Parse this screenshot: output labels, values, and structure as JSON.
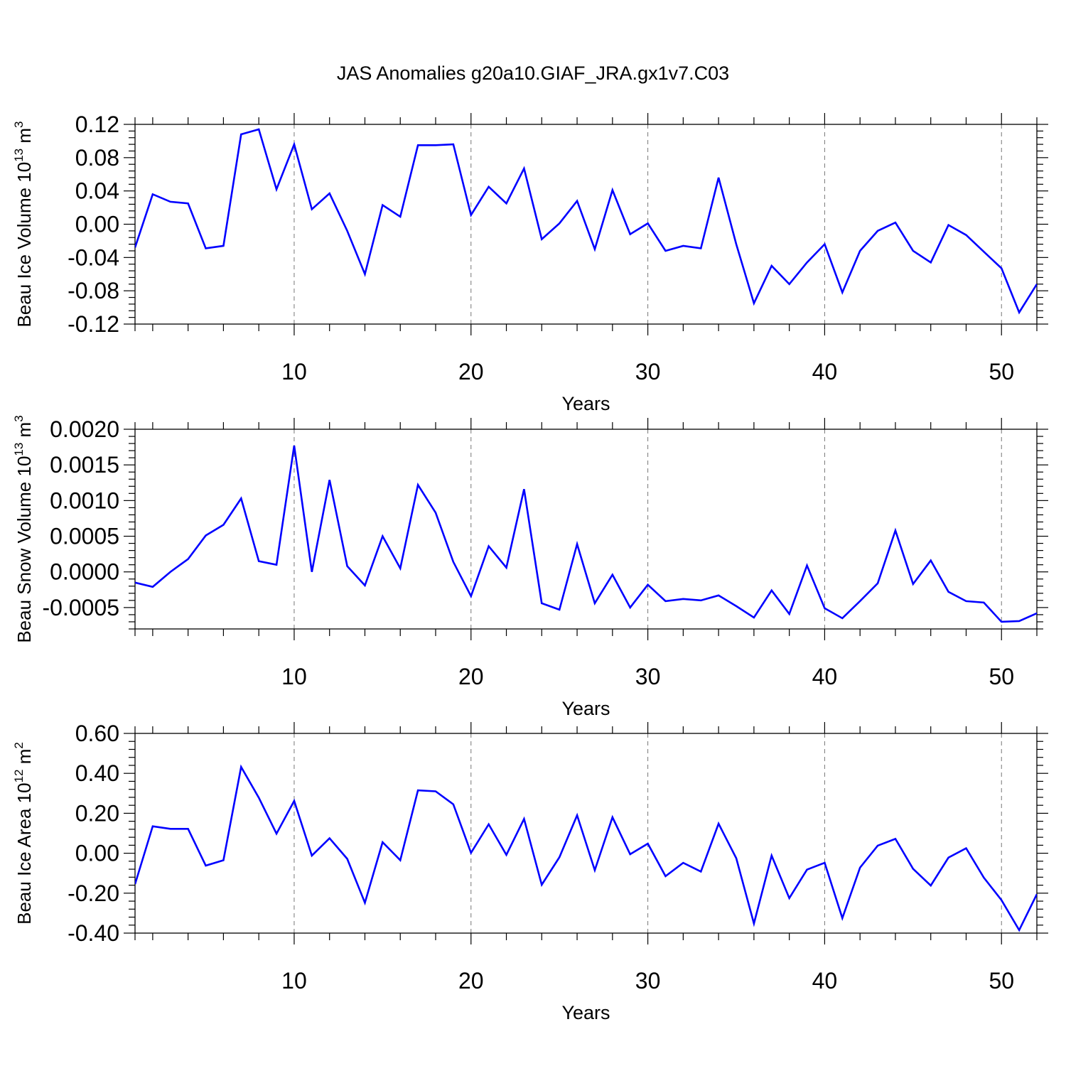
{
  "title": "JAS Anomalies g20a10.GIAF_JRA.gx1v7.C03",
  "colors": {
    "series": "#0000ff",
    "grid": "#777777",
    "axis": "#000000"
  },
  "chart_data": [
    {
      "type": "line",
      "xlabel": "Years",
      "ylabel": {
        "text": "Beau Ice Volume 10",
        "sup": "13",
        "unit": " m",
        "unit_sup": "3"
      },
      "xlim": [
        1,
        52
      ],
      "ylim": [
        -0.12,
        0.12
      ],
      "x_ticks": [
        10,
        20,
        30,
        40,
        50
      ],
      "y_ticks": [
        -0.12,
        -0.08,
        -0.04,
        0.0,
        0.04,
        0.08,
        0.12
      ],
      "y_tick_labels": [
        "-0.12",
        "-0.08",
        "-0.04",
        "0.00",
        "0.04",
        "0.08",
        "0.12"
      ],
      "grid_x": true,
      "series": [
        {
          "name": "Beau Ice Volume",
          "x": [
            1,
            2,
            3,
            4,
            5,
            6,
            7,
            8,
            9,
            10,
            11,
            12,
            13,
            14,
            15,
            16,
            17,
            18,
            19,
            20,
            21,
            22,
            23,
            24,
            25,
            26,
            27,
            28,
            29,
            30,
            31,
            32,
            33,
            34,
            35,
            36,
            37,
            38,
            39,
            40,
            41,
            42,
            43,
            44,
            45,
            46,
            47,
            48,
            49,
            50,
            51,
            52
          ],
          "values": [
            -0.028,
            0.036,
            0.027,
            0.025,
            -0.029,
            -0.026,
            0.108,
            0.114,
            0.042,
            0.096,
            0.018,
            0.037,
            -0.008,
            -0.06,
            0.023,
            0.009,
            0.095,
            0.095,
            0.096,
            0.011,
            0.045,
            0.025,
            0.067,
            -0.018,
            0.001,
            0.028,
            -0.03,
            0.041,
            -0.012,
            0.001,
            -0.032,
            -0.026,
            -0.029,
            0.056,
            -0.024,
            -0.095,
            -0.05,
            -0.072,
            -0.046,
            -0.024,
            -0.082,
            -0.032,
            -0.008,
            0.002,
            -0.032,
            -0.046,
            -0.001,
            -0.013,
            -0.033,
            -0.053,
            -0.106,
            -0.072
          ]
        }
      ]
    },
    {
      "type": "line",
      "xlabel": "Years",
      "ylabel": {
        "text": "Beau Snow Volume 10",
        "sup": "13",
        "unit": " m",
        "unit_sup": "3"
      },
      "xlim": [
        1,
        52
      ],
      "ylim": [
        -0.0008,
        0.002
      ],
      "x_ticks": [
        10,
        20,
        30,
        40,
        50
      ],
      "y_ticks": [
        -0.0005,
        0.0,
        0.0005,
        0.001,
        0.0015,
        0.002
      ],
      "y_tick_labels": [
        "-0.0005",
        "0.0000",
        "0.0005",
        "0.0010",
        "0.0015",
        "0.0020"
      ],
      "grid_x": true,
      "series": [
        {
          "name": "Beau Snow Volume",
          "x": [
            1,
            2,
            3,
            4,
            5,
            6,
            7,
            8,
            9,
            10,
            11,
            12,
            13,
            14,
            15,
            16,
            17,
            18,
            19,
            20,
            21,
            22,
            23,
            24,
            25,
            26,
            27,
            28,
            29,
            30,
            31,
            32,
            33,
            34,
            35,
            36,
            37,
            38,
            39,
            40,
            41,
            42,
            43,
            44,
            45,
            46,
            47,
            48,
            49,
            50,
            51,
            52
          ],
          "values": [
            -0.00015,
            -0.00021,
            0.0,
            0.00018,
            0.00051,
            0.00066,
            0.00103,
            0.00015,
            0.0001,
            0.00177,
            0.0,
            0.00129,
            8e-05,
            -0.00019,
            0.0005,
            5e-05,
            0.00122,
            0.00083,
            0.00014,
            -0.00034,
            0.00036,
            6e-05,
            0.00116,
            -0.00044,
            -0.00053,
            0.00039,
            -0.00044,
            -4e-05,
            -0.0005,
            -0.00018,
            -0.00041,
            -0.00038,
            -0.0004,
            -0.00033,
            -0.00048,
            -0.00064,
            -0.00026,
            -0.00059,
            9e-05,
            -0.00051,
            -0.00065,
            -0.00041,
            -0.00016,
            0.00058,
            -0.00017,
            0.00016,
            -0.00028,
            -0.00041,
            -0.00043,
            -0.0007,
            -0.00069,
            -0.00058
          ]
        }
      ]
    },
    {
      "type": "line",
      "xlabel": "Years",
      "ylabel": {
        "text": "Beau Ice Area 10",
        "sup": "12",
        "unit": " m",
        "unit_sup": "2"
      },
      "xlim": [
        1,
        52
      ],
      "ylim": [
        -0.4,
        0.6
      ],
      "x_ticks": [
        10,
        20,
        30,
        40,
        50
      ],
      "y_ticks": [
        -0.4,
        -0.2,
        0.0,
        0.2,
        0.4,
        0.6
      ],
      "y_tick_labels": [
        "-0.40",
        "-0.20",
        "0.00",
        "0.20",
        "0.40",
        "0.60"
      ],
      "grid_x": true,
      "series": [
        {
          "name": "Beau Ice Area",
          "x": [
            1,
            2,
            3,
            4,
            5,
            6,
            7,
            8,
            9,
            10,
            11,
            12,
            13,
            14,
            15,
            16,
            17,
            18,
            19,
            20,
            21,
            22,
            23,
            24,
            25,
            26,
            27,
            28,
            29,
            30,
            31,
            32,
            33,
            34,
            35,
            36,
            37,
            38,
            39,
            40,
            41,
            42,
            43,
            44,
            45,
            46,
            47,
            48,
            49,
            50,
            51,
            52
          ],
          "values": [
            -0.155,
            0.135,
            0.122,
            0.122,
            -0.062,
            -0.035,
            0.432,
            0.278,
            0.098,
            0.262,
            -0.012,
            0.075,
            -0.028,
            -0.248,
            0.055,
            -0.035,
            0.315,
            0.31,
            0.245,
            0.002,
            0.145,
            -0.008,
            0.172,
            -0.158,
            -0.02,
            0.19,
            -0.085,
            0.18,
            -0.005,
            0.048,
            -0.115,
            -0.048,
            -0.092,
            0.148,
            -0.025,
            -0.352,
            -0.012,
            -0.225,
            -0.082,
            -0.048,
            -0.325,
            -0.072,
            0.038,
            0.072,
            -0.078,
            -0.162,
            -0.022,
            0.025,
            -0.122,
            -0.235,
            -0.385,
            -0.205
          ]
        }
      ]
    }
  ]
}
